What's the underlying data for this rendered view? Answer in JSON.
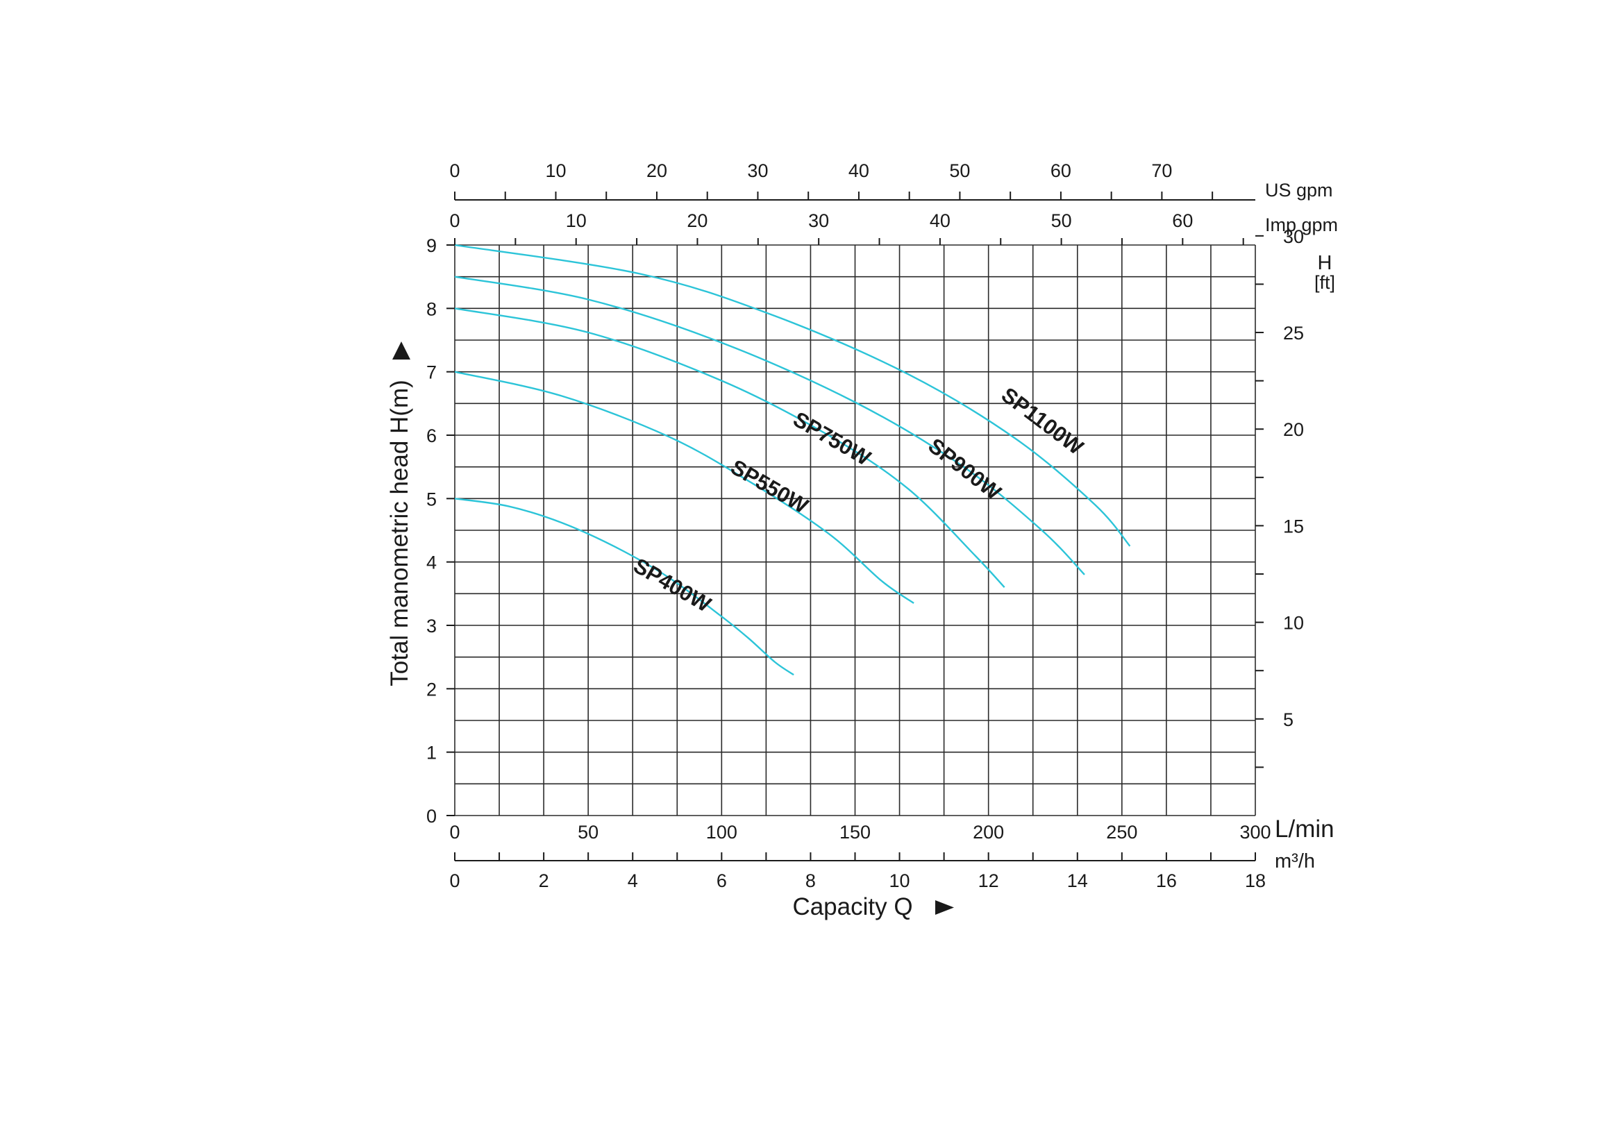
{
  "chart_data": {
    "type": "line",
    "title": "",
    "xlabel": "Capacity Q",
    "ylabel": "Total manometric head H(m)",
    "xlim": [
      0,
      300
    ],
    "ylim": [
      0,
      9
    ],
    "grid": true,
    "curve_color": "#2cc4d8",
    "x_axis_bottom": {
      "unit": "L/min",
      "ticks": [
        "0",
        "50",
        "100",
        "150",
        "200",
        "250",
        "300"
      ],
      "tick_values": [
        0,
        50,
        100,
        150,
        200,
        250,
        300
      ]
    },
    "x_axis_m3h": {
      "unit": "m³/h",
      "ticks": [
        "0",
        "2",
        "4",
        "6",
        "8",
        "10",
        "12",
        "14",
        "16",
        "18"
      ],
      "tick_values": [
        0,
        2,
        4,
        6,
        8,
        10,
        12,
        14,
        16,
        18
      ]
    },
    "x_axis_us_gpm": {
      "unit": "US gpm",
      "ticks": [
        "0",
        "10",
        "20",
        "30",
        "40",
        "50",
        "60",
        "70"
      ],
      "tick_values": [
        0,
        10,
        20,
        30,
        40,
        50,
        60,
        70
      ]
    },
    "x_axis_imp_gpm": {
      "unit": "Imp gpm",
      "ticks": [
        "0",
        "10",
        "20",
        "30",
        "40",
        "50",
        "60"
      ],
      "tick_values": [
        0,
        10,
        20,
        30,
        40,
        50,
        60
      ]
    },
    "y_axis_left": {
      "ticks": [
        "0",
        "1",
        "2",
        "3",
        "4",
        "5",
        "6",
        "7",
        "8",
        "9"
      ],
      "tick_values": [
        0,
        1,
        2,
        3,
        4,
        5,
        6,
        7,
        8,
        9
      ]
    },
    "y_axis_right": {
      "unit_top": "H",
      "unit_bottom": "[ft]",
      "ticks": [
        "5",
        "10",
        "15",
        "20",
        "25",
        "30"
      ],
      "tick_values": [
        5,
        10,
        15,
        20,
        25,
        30
      ]
    },
    "series": [
      {
        "name": "SP400W",
        "x": [
          0,
          20,
          40,
          60,
          80,
          100,
          110,
          120,
          127
        ],
        "y": [
          5.0,
          4.88,
          4.62,
          4.24,
          3.76,
          3.14,
          2.8,
          2.42,
          2.22
        ]
      },
      {
        "name": "SP550W",
        "x": [
          0,
          40,
          80,
          110,
          140,
          160,
          172
        ],
        "y": [
          7.0,
          6.62,
          5.98,
          5.28,
          4.45,
          3.7,
          3.35
        ]
      },
      {
        "name": "SP750W",
        "x": [
          0,
          50,
          100,
          140,
          170,
          195,
          206
        ],
        "y": [
          8.0,
          7.62,
          6.86,
          6.0,
          5.15,
          4.1,
          3.6
        ]
      },
      {
        "name": "SP900W",
        "x": [
          0,
          50,
          100,
          150,
          190,
          220,
          236
        ],
        "y": [
          8.5,
          8.14,
          7.46,
          6.52,
          5.52,
          4.5,
          3.8
        ]
      },
      {
        "name": "SP1100W",
        "x": [
          0,
          70,
          120,
          170,
          210,
          240,
          253
        ],
        "y": [
          9.0,
          8.54,
          7.88,
          6.96,
          5.95,
          4.9,
          4.25
        ]
      }
    ]
  }
}
